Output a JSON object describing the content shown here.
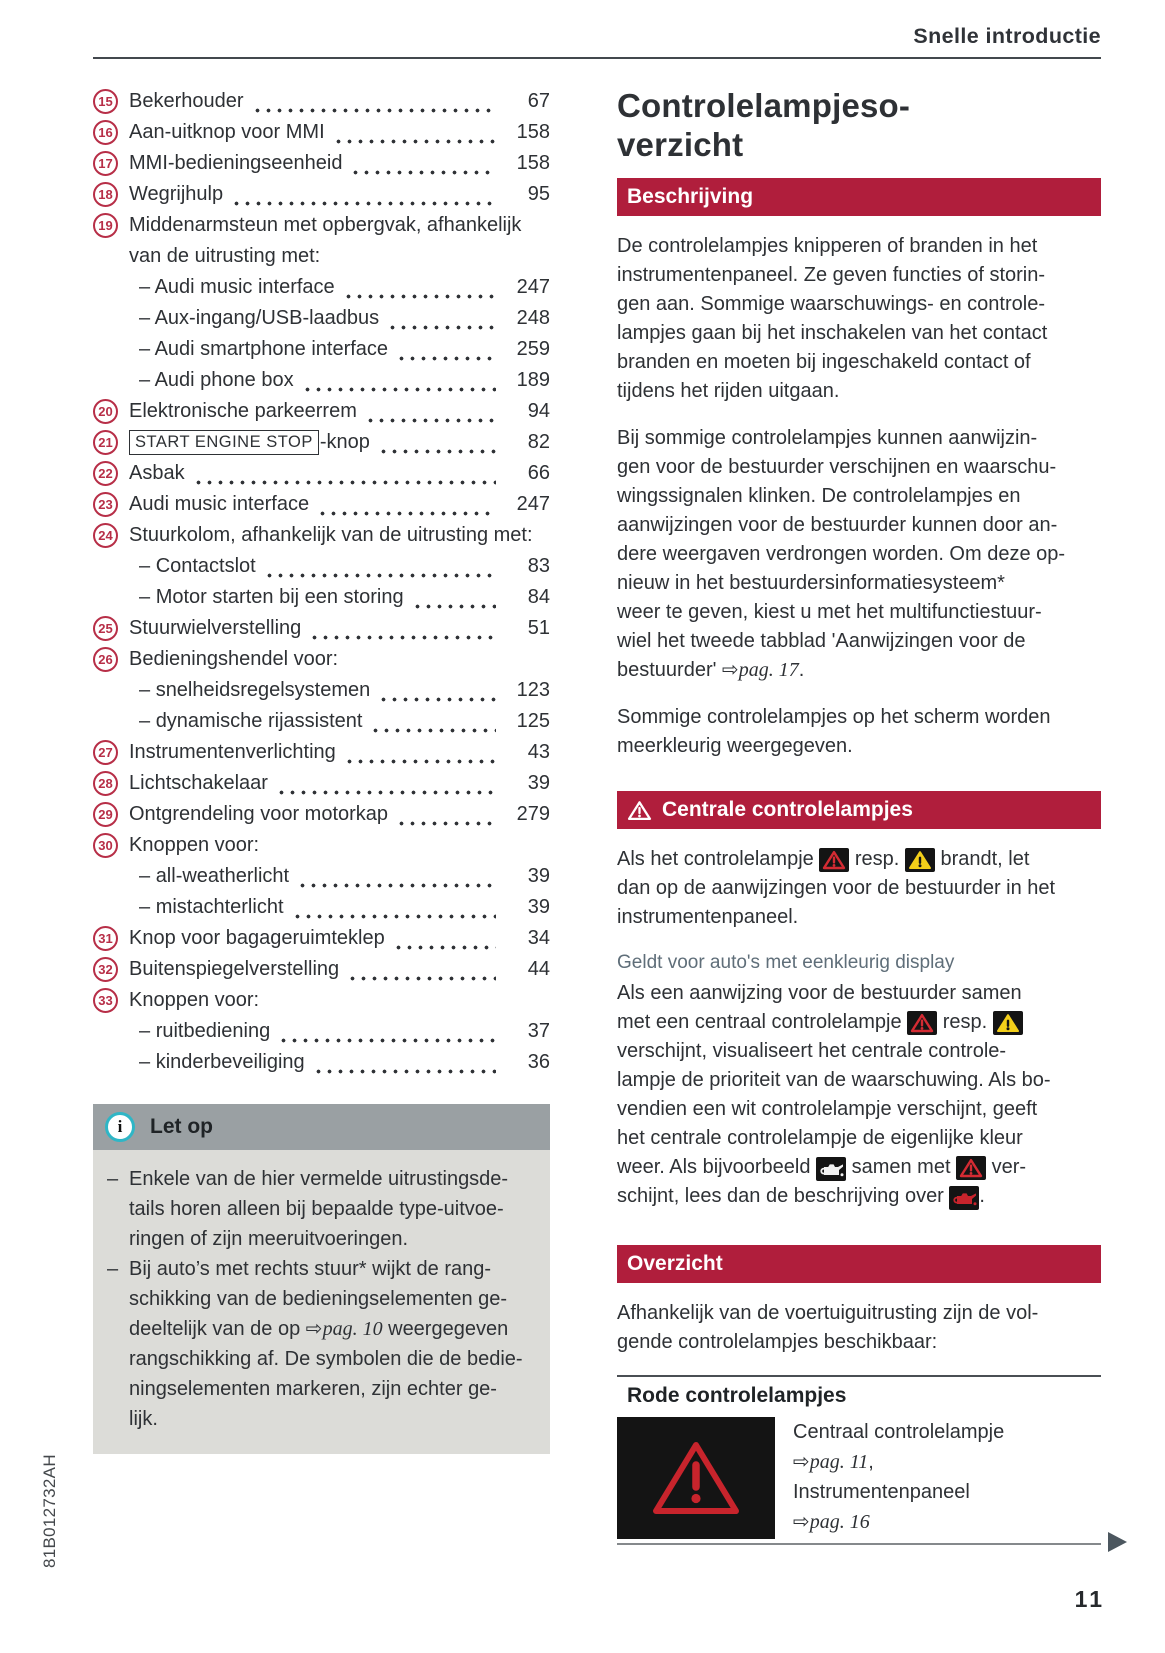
{
  "page": {
    "header": "Snelle introductie",
    "page_number": "11",
    "spine_code": "81B012732AH"
  },
  "colors": {
    "accent_red": "#b01e3c",
    "badge_red": "#b72e47",
    "warning_red": "#d42b33",
    "warning_yellow": "#f3cf1a",
    "note_header_bg": "#9aa0a3",
    "note_body_bg": "#dcdcd8",
    "info_teal": "#2fb6c6",
    "text": "#2e3135",
    "muted_heading": "#5f6e79",
    "chip_bg": "#141414",
    "continuation_arrow": "#4c575f"
  },
  "toc": {
    "rows": [
      {
        "num": "15",
        "label": "Bekerhouder",
        "page": "67"
      },
      {
        "num": "16",
        "label": "Aan-uitknop voor MMI",
        "page": "158"
      },
      {
        "num": "17",
        "label": "MMI-bedieningseenheid",
        "page": "158"
      },
      {
        "num": "18",
        "label": "Wegrijhulp",
        "page": "95"
      },
      {
        "num": "19",
        "label": "Middenarmsteun met opbergvak, afhankelijk van de uitrusting met:",
        "page": ""
      },
      {
        "sub": true,
        "label": "Audi music interface",
        "page": "247"
      },
      {
        "sub": true,
        "label": "Aux-ingang/USB-laadbus",
        "page": "248"
      },
      {
        "sub": true,
        "label": "Audi smartphone interface",
        "page": "259"
      },
      {
        "sub": true,
        "label": "Audi phone box",
        "page": "189"
      },
      {
        "num": "20",
        "label": "Elektronische parkeerrem",
        "page": "94"
      },
      {
        "num": "21",
        "boxed": "START ENGINE STOP",
        "label": "-knop",
        "page": "82"
      },
      {
        "num": "22",
        "label": "Asbak",
        "page": "66"
      },
      {
        "num": "23",
        "label": "Audi music interface",
        "page": "247"
      },
      {
        "num": "24",
        "label": "Stuurkolom, afhankelijk van de uitrusting met:",
        "page": ""
      },
      {
        "sub": true,
        "label": "Contactslot",
        "page": "83"
      },
      {
        "sub": true,
        "label": "Motor starten bij een storing",
        "page": "84"
      },
      {
        "num": "25",
        "label": "Stuurwielverstelling",
        "page": "51"
      },
      {
        "num": "26",
        "label": "Bedieningshendel voor:",
        "page": ""
      },
      {
        "sub": true,
        "label": "snelheidsregelsystemen",
        "page": "123"
      },
      {
        "sub": true,
        "label": "dynamische rijassistent",
        "page": "125"
      },
      {
        "num": "27",
        "label": "Instrumentenverlichting",
        "page": "43"
      },
      {
        "num": "28",
        "label": "Lichtschakelaar",
        "page": "39"
      },
      {
        "num": "29",
        "label": "Ontgrendeling voor motorkap",
        "page": "279"
      },
      {
        "num": "30",
        "label": "Knoppen voor:",
        "page": ""
      },
      {
        "sub": true,
        "label": "all-weatherlicht",
        "page": "39"
      },
      {
        "sub": true,
        "label": "mistachterlicht",
        "page": "39"
      },
      {
        "num": "31",
        "label": "Knop voor bagageruimteklep",
        "page": "34"
      },
      {
        "num": "32",
        "label": "Buitenspiegelverstelling",
        "page": "44"
      },
      {
        "num": "33",
        "label": "Knoppen voor:",
        "page": ""
      },
      {
        "sub": true,
        "label": "ruitbediening",
        "page": "37"
      },
      {
        "sub": true,
        "label": "kinderbeveiliging",
        "page": "36"
      }
    ]
  },
  "note": {
    "title": "Let op",
    "items": [
      [
        {
          "t": "Enkele van de hier vermelde uitrustingsde-\ntails horen alleen bij bepaalde type-uitvoe-\nringen of zijn meeruitvoeringen."
        }
      ],
      [
        {
          "t": "Bij auto’s met rechts stuur* wijkt de rang-\nschikking van de bedieningselementen ge-\ndeeltelijk van de op "
        },
        {
          "ref": "pag. 10"
        },
        {
          "t": " weergegeven\nrangschikking af. De symbolen die de bedie-\nningselementen markeren, zijn echter ge-\nlijk."
        }
      ]
    ]
  },
  "article": {
    "title": "Controlelampjeso-\nverzicht",
    "beschrijving": {
      "heading": "Beschrijving",
      "p1": "De controlelampjes knipperen of branden in het\ninstrumentenpaneel. Ze geven functies of storin-\ngen aan. Sommige waarschuwings- en controle-\nlampjes gaan bij het inschakelen van het contact\nbranden en moeten bij ingeschakeld contact of\ntijdens het rijden uitgaan.",
      "p2": [
        {
          "t": "Bij sommige controlelampjes kunnen aanwijzin-\ngen voor de bestuurder verschijnen en waarschu-\nwingssignalen klinken. De controlelampjes en\naanwijzingen voor de bestuurder kunnen door an-\ndere weergaven verdrongen worden. Om deze op-\nnieuw in het bestuurdersinformatiesysteem*\nweer te geven, kiest u met het multifunctiestuur-\nwiel het tweede tabblad 'Aanwijzingen voor de\nbestuurder' "
        },
        {
          "ref": "pag. 17"
        },
        {
          "t": "."
        }
      ],
      "p3": "Sommige controlelampjes op het scherm worden\nmeerkleurig weergegeven."
    },
    "centrale": {
      "heading": "Centrale controlelampjes",
      "p1": [
        {
          "t": "Als het controlelampje "
        },
        {
          "icon": "warning-triangle-red"
        },
        {
          "t": " resp. "
        },
        {
          "icon": "warning-triangle-yellow"
        },
        {
          "t": " brandt, let\ndan op de aanwijzingen voor de bestuurder in het\ninstrumentenpaneel."
        }
      ],
      "applies": "Geldt voor auto's met eenkleurig display",
      "p2": [
        {
          "t": "Als een aanwijzing voor de bestuurder samen\nmet een centraal controlelampje "
        },
        {
          "icon": "warning-triangle-red"
        },
        {
          "t": " resp. "
        },
        {
          "icon": "warning-triangle-yellow"
        },
        {
          "t": "\nverschijnt, visualiseert het centrale controle-\nlampje de prioriteit van de waarschuwing. Als bo-\nvendien een wit controlelampje verschijnt, geeft\nhet centrale controlelampje de eigenlijke kleur\nweer. Als bijvoorbeeld "
        },
        {
          "icon": "oil-pressure-white"
        },
        {
          "t": " samen met "
        },
        {
          "icon": "warning-triangle-red"
        },
        {
          "t": " ver-\nschijnt, lees dan de beschrijving over "
        },
        {
          "icon": "oil-pressure-red"
        },
        {
          "t": "."
        }
      ]
    },
    "overzicht": {
      "heading": "Overzicht",
      "p1": "Afhankelijk van de voertuiguitrusting zijn de vol-\ngende controlelampjes beschikbaar:",
      "table": {
        "group": "Rode controlelampjes",
        "rows": [
          {
            "icon": "central-warning-red",
            "desc": [
              {
                "t": "Centraal controlelampje\n"
              },
              {
                "ref": "pag. 11"
              },
              {
                "t": ",\nInstrumentenpaneel\n"
              },
              {
                "ref": "pag. 16"
              }
            ]
          }
        ]
      }
    }
  }
}
